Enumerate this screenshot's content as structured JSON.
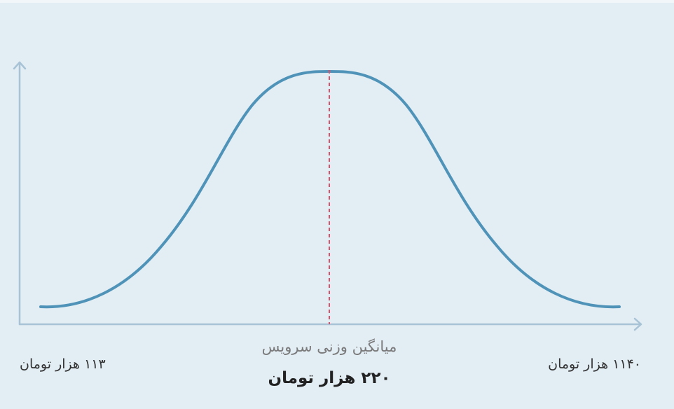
{
  "range": {
    "min_label": "۱۱۳ هزار تومان",
    "max_label": "۱۱۴۰ هزار تومان"
  },
  "mean": {
    "label": "میانگین وزنی سرویس",
    "value": "۲۲۰ هزار تومان"
  }
}
